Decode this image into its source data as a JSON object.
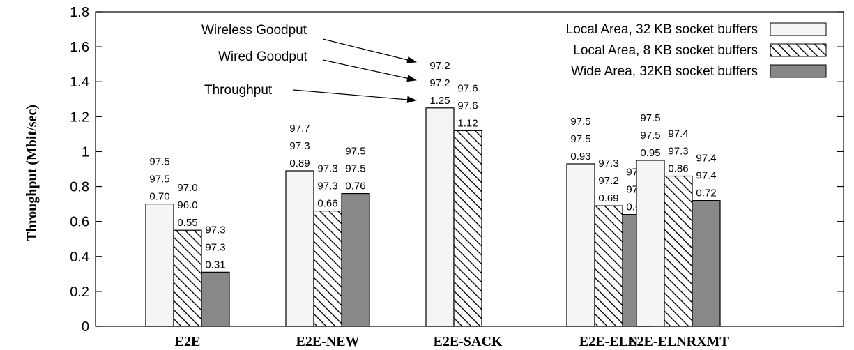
{
  "chart_data": {
    "type": "bar",
    "ylabel": "Throughput (Mbit/sec)",
    "ylim": [
      0,
      1.8
    ],
    "yticks": [
      "0",
      "0.2",
      "0.4",
      "0.6",
      "0.8",
      "1",
      "1.2",
      "1.4",
      "1.6",
      "1.8"
    ],
    "categories": [
      "E2E",
      "E2E-NEW",
      "E2E-SACK",
      "E2E-ELN",
      "E2E-ELNRXMT"
    ],
    "series": [
      {
        "name": "Local Area, 32 KB socket buffers",
        "fill": "light",
        "values": [
          0.7,
          0.89,
          1.25,
          0.93,
          0.95
        ],
        "labels": [
          [
            "97.5",
            "97.5",
            "0.70"
          ],
          [
            "97.7",
            "97.3",
            "0.89"
          ],
          [
            "97.2",
            "97.2",
            "1.25"
          ],
          [
            "97.5",
            "97.5",
            "0.93"
          ],
          [
            "97.5",
            "97.5",
            "0.95"
          ]
        ]
      },
      {
        "name": "Local Area, 8 KB socket buffers",
        "fill": "hatched",
        "values": [
          0.55,
          0.66,
          1.12,
          0.69,
          0.86
        ],
        "labels": [
          [
            "97.0",
            "96.0",
            "0.55"
          ],
          [
            "97.3",
            "97.3",
            "0.66"
          ],
          [
            "97.6",
            "97.6",
            "1.12"
          ],
          [
            "97.3",
            "97.2",
            "0.69"
          ],
          [
            "97.4",
            "97.3",
            "0.86"
          ]
        ]
      },
      {
        "name": "Wide Area, 32KB socket buffers",
        "fill": "gray",
        "values": [
          0.31,
          0.76,
          null,
          0.64,
          0.72
        ],
        "labels": [
          [
            "97.3",
            "97.3",
            "0.31"
          ],
          [
            "97.5",
            "97.5",
            "0.76"
          ],
          null,
          [
            "97.6",
            "97.6",
            "0.64"
          ],
          [
            "97.4",
            "97.4",
            "0.72"
          ]
        ]
      }
    ],
    "legend_position": "top-right",
    "annotations": [
      "Wireless Goodput",
      "Wired Goodput",
      "Throughput"
    ],
    "colors": {
      "light": "#f5f5f5",
      "gray": "#888888",
      "stroke": "#000000"
    }
  }
}
